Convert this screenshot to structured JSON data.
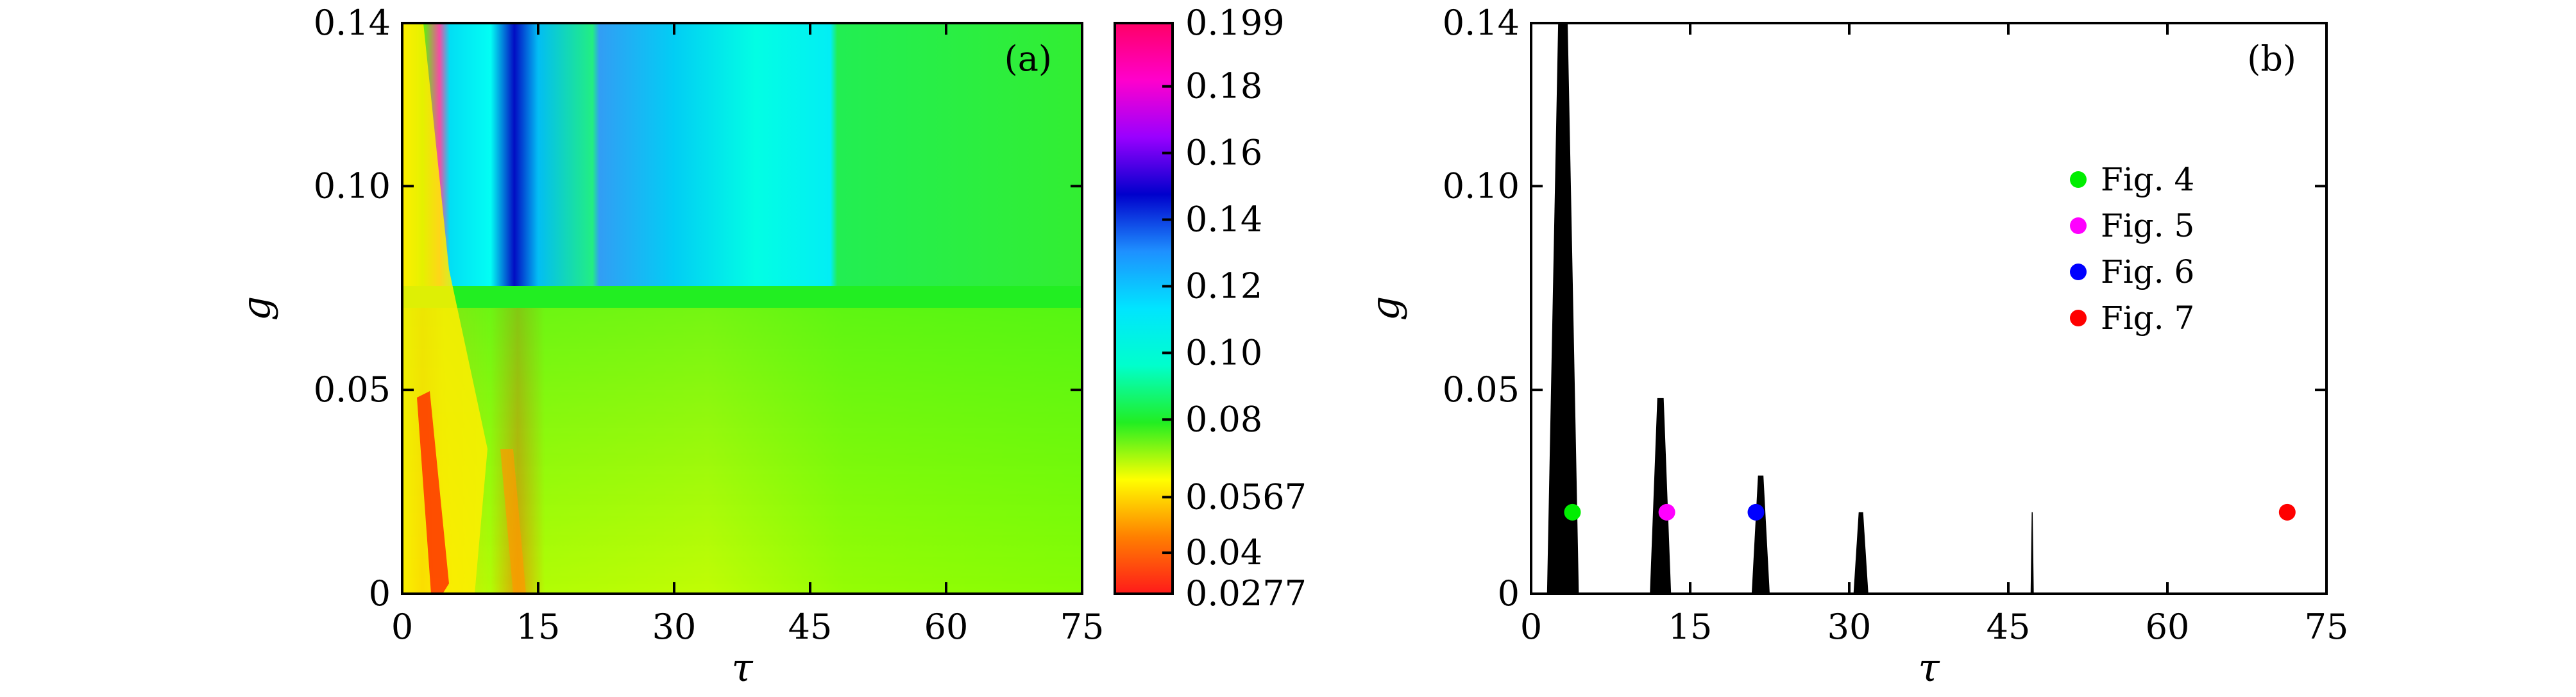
{
  "chart_data": [
    {
      "type": "heatmap",
      "panel_label": "(a)",
      "xlabel": "τ",
      "ylabel": "g",
      "xlim": [
        0,
        75
      ],
      "ylim": [
        0,
        0.14
      ],
      "xticks": [
        "0",
        "15",
        "30",
        "45",
        "60",
        "75"
      ],
      "yticks": [
        "0",
        "0.05",
        "0.10",
        "0.14"
      ],
      "colorbar": {
        "range": [
          0.0277,
          0.199
        ],
        "tick_values": [
          0.0277,
          0.04,
          0.0567,
          0.08,
          0.1,
          0.12,
          0.14,
          0.16,
          0.18,
          0.199
        ],
        "tick_labels": [
          "0.0277",
          "0.04",
          "0.0567",
          "0.08",
          "0.10",
          "0.12",
          "0.14",
          "0.16",
          "0.18",
          "0.199"
        ],
        "colors": [
          "#ff1a1a",
          "#ff8000",
          "#ffff00",
          "#22ee22",
          "#00ffcc",
          "#00e5ff",
          "#1e90ff",
          "#0000cc",
          "#9900ff",
          "#ff00cc",
          "#ff0066"
        ]
      }
    },
    {
      "type": "scatter",
      "panel_label": "(b)",
      "xlabel": "τ",
      "ylabel": "g",
      "xlim": [
        0,
        75
      ],
      "ylim": [
        0,
        0.14
      ],
      "xticks": [
        "0",
        "15",
        "30",
        "45",
        "60",
        "75"
      ],
      "yticks": [
        "0",
        "0.05",
        "0.10",
        "0.14"
      ],
      "regions": [
        {
          "x_from": 1.5,
          "x_to": 4.5,
          "y_to": 0.14
        },
        {
          "x_from": 11.2,
          "x_to": 13.2,
          "y_to": 0.048
        },
        {
          "x_from": 20.8,
          "x_to": 22.5,
          "y_to": 0.029
        },
        {
          "x_from": 30.4,
          "x_to": 31.8,
          "y_to": 0.02
        },
        {
          "x_from": 47.1,
          "x_to": 47.4,
          "y_to": 0.02
        }
      ],
      "series": [
        {
          "name": "Fig. 4",
          "color": "#00ee00",
          "x": 3.9,
          "y": 0.02
        },
        {
          "name": "Fig. 5",
          "color": "#ff00ff",
          "x": 12.8,
          "y": 0.02
        },
        {
          "name": "Fig. 6",
          "color": "#0000ff",
          "x": 21.2,
          "y": 0.02
        },
        {
          "name": "Fig. 7",
          "color": "#ff0000",
          "x": 71.3,
          "y": 0.02
        }
      ],
      "legend_position": "upper-right"
    }
  ]
}
